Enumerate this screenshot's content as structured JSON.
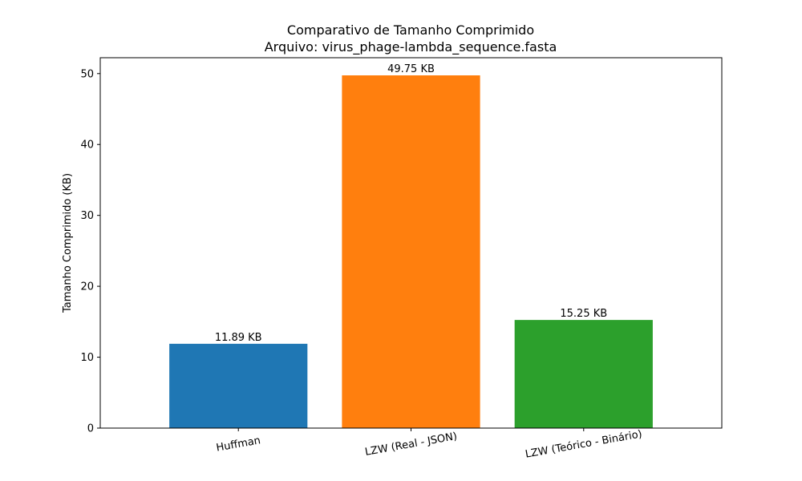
{
  "chart_data": {
    "type": "bar",
    "title": "Comparativo de Tamanho Comprimido",
    "subtitle": "Arquivo: virus_phage-lambda_sequence.fasta",
    "xlabel": "",
    "ylabel": "Tamanho Comprimido (KB)",
    "categories": [
      "Huffman",
      "LZW (Real - JSON)",
      "LZW (Teórico - Binário)"
    ],
    "values": [
      11.89,
      49.75,
      15.25
    ],
    "value_labels": [
      "11.89 KB",
      "49.75 KB",
      "15.25 KB"
    ],
    "colors": [
      "#1f77b4",
      "#ff7f0e",
      "#2ca02c"
    ],
    "ylim": [
      0,
      52.2375
    ],
    "yticks": [
      0,
      10,
      20,
      30,
      40,
      50
    ],
    "grid": false,
    "x_tick_rotation_deg": -10
  }
}
